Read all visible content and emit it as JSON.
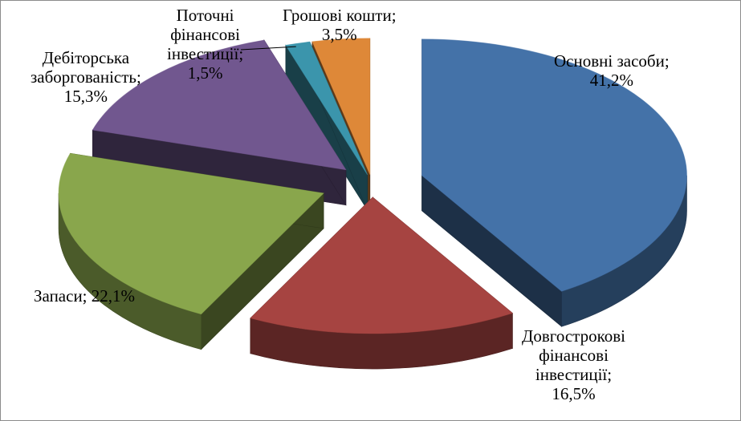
{
  "chart_data": {
    "type": "pie",
    "style": "exploded-3d",
    "title": "",
    "slices": [
      {
        "label_lines": [
          "Основні засоби;",
          "41,2%"
        ],
        "value": 41.2,
        "color": "#4472a8"
      },
      {
        "label_lines": [
          "Довгострокові",
          "фінансові",
          "інвестиції;",
          "16,5%"
        ],
        "value": 16.5,
        "color": "#a64441"
      },
      {
        "label_lines": [
          "Запаси; 22,1%"
        ],
        "value": 22.1,
        "color": "#89a64c"
      },
      {
        "label_lines": [
          "Дебіторська",
          "заборгованість;",
          "15,3%"
        ],
        "value": 15.3,
        "color": "#71578f"
      },
      {
        "label_lines": [
          "Поточні",
          "фінансові",
          "інвестиції;",
          "1,5%"
        ],
        "value": 1.5,
        "color": "#3b95ac"
      },
      {
        "label_lines": [
          "Грошові кошти;",
          "3,5%"
        ],
        "value": 3.5,
        "color": "#de8838"
      }
    ]
  }
}
